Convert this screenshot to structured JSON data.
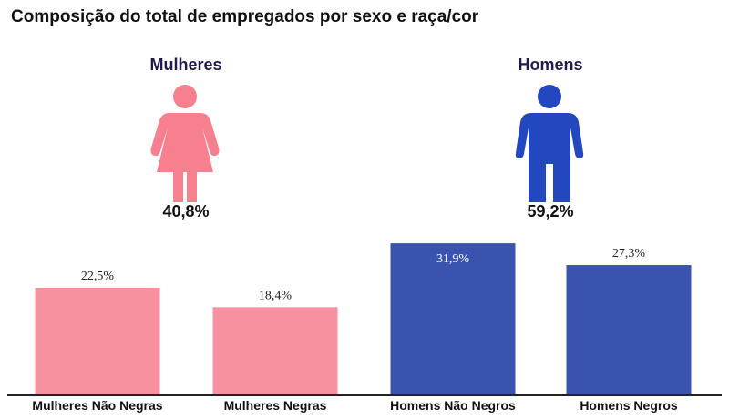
{
  "title": "Composição do total de empregados por sexo e raça/cor",
  "summary": [
    {
      "label": "Mulheres",
      "value": "40,8%",
      "color": "#f7808f",
      "icon": "female-person-icon"
    },
    {
      "label": "Homens",
      "value": "59,2%",
      "color": "#2347bf",
      "icon": "male-person-icon"
    }
  ],
  "chart_data": {
    "type": "bar",
    "title": "Composição do total de empregados por sexo e raça/cor",
    "categories": [
      "Mulheres Não Negras",
      "Mulheres Negras",
      "Homens Não Negros",
      "Homens Negros"
    ],
    "values": [
      22.5,
      18.4,
      31.9,
      27.3
    ],
    "data_labels": [
      "22,5%",
      "18,4%",
      "31,9%",
      "27,3%"
    ],
    "colors": [
      "#f7919f",
      "#f7919f",
      "#3a53ae",
      "#3a53ae"
    ],
    "ylim": [
      0,
      32
    ],
    "xlabel": "",
    "ylabel": "",
    "grid": false
  }
}
